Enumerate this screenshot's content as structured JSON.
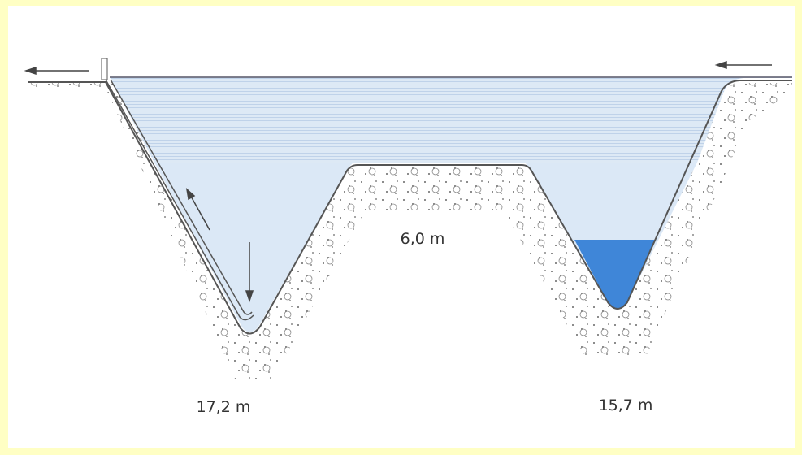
{
  "labels": {
    "plateau_height": "6,0 m",
    "left_depth": "17,2 m",
    "right_depth": "15,7 m"
  }
}
